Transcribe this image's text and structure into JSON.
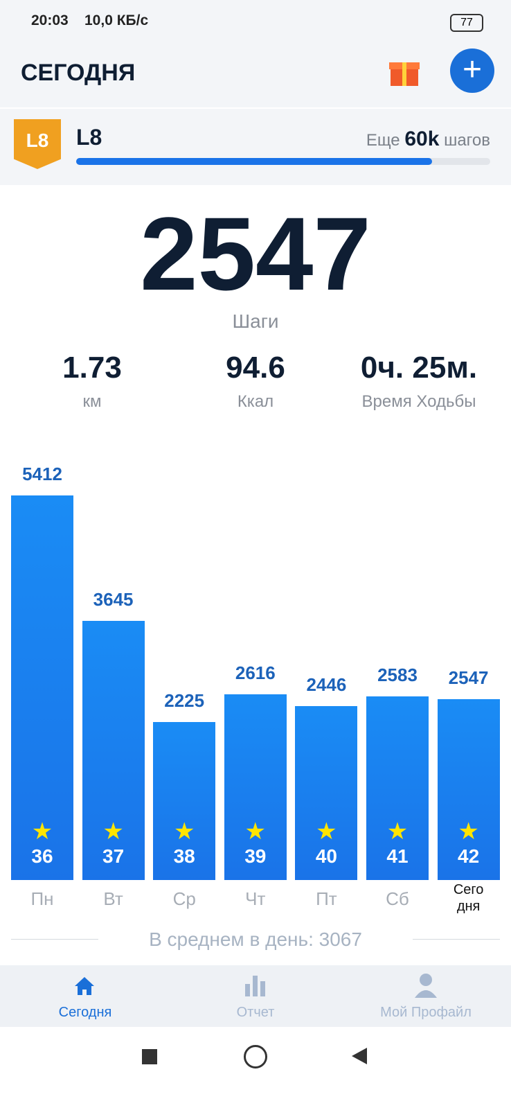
{
  "status_bar": {
    "time": "20:03",
    "speed": "10,0 КБ/с",
    "battery": "77"
  },
  "header": {
    "title": "СЕГОДНЯ"
  },
  "level": {
    "badge": "L8",
    "name": "L8",
    "remaining_prefix": "Еще",
    "remaining_value": "60k",
    "remaining_suffix": "шагов",
    "progress": 86
  },
  "steps": {
    "value": "2547",
    "label": "Шаги"
  },
  "stats": [
    {
      "value": "1.73",
      "label": "км"
    },
    {
      "value": "94.6",
      "label": "Ккал"
    },
    {
      "value": "0ч. 25м.",
      "label": "Время Ходьбы"
    }
  ],
  "chart_data": {
    "type": "bar",
    "categories": [
      "Пн",
      "Вт",
      "Ср",
      "Чт",
      "Пт",
      "Сб",
      "Сегодня"
    ],
    "values": [
      5412,
      3645,
      2225,
      2616,
      2446,
      2583,
      2547
    ],
    "color": "#1a73e8",
    "badges": [
      "36",
      "37",
      "38",
      "39",
      "40",
      "41",
      "42"
    ]
  },
  "average": "В среднем в день: 3067",
  "nav": [
    "Сегодня",
    "Отчет",
    "Мой Профайл"
  ]
}
